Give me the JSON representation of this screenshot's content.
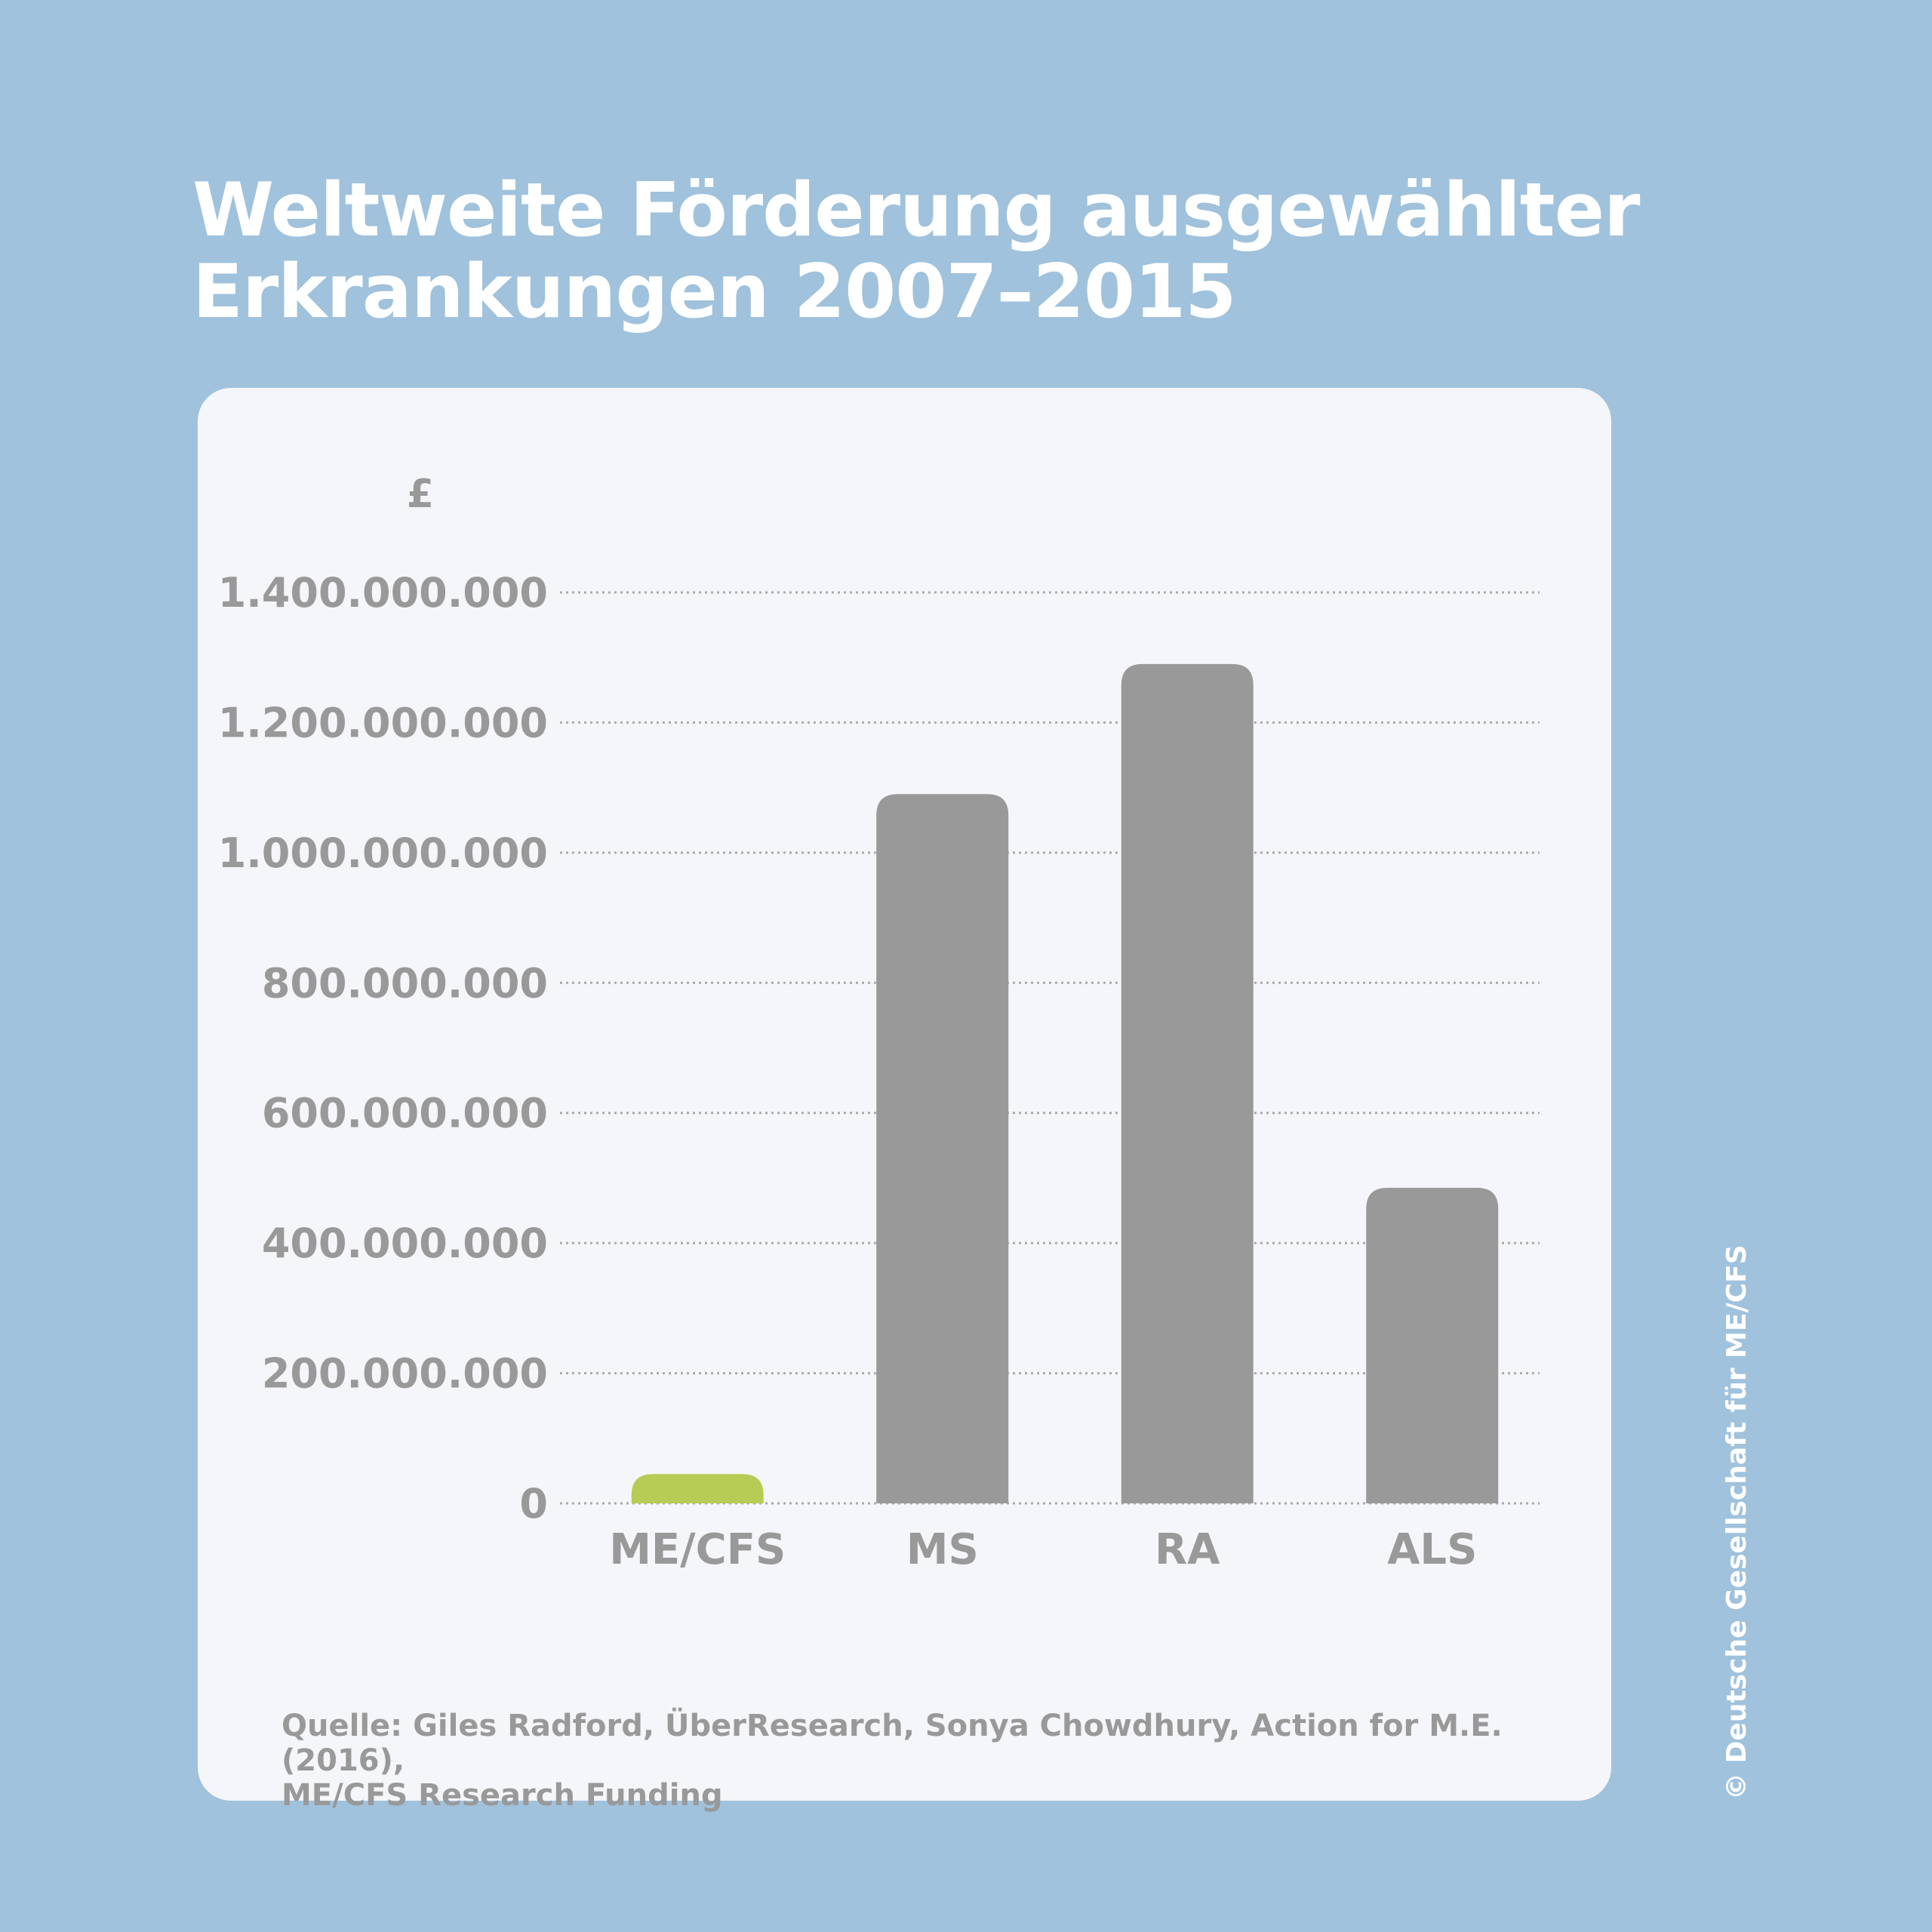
{
  "title_lines": [
    "Weltweite Förderung ausgewählter",
    "Erkrankungen 2007–2015"
  ],
  "source_lines": [
    "Quelle: Giles Radford, ÜberResearch, Sonya Chowdhury, Action for M.E. (2016),",
    "ME/CFS Research Funding"
  ],
  "copyright": "© Deutsche Gesellschaft für ME/CFS",
  "colors": {
    "background": "#a0c2dc",
    "card": "#f5f6f9",
    "bar_default": "#999999",
    "bar_highlight": "#b6cc55",
    "text_gray": "#999999"
  },
  "chart_data": {
    "type": "bar",
    "ylabel": "£",
    "ylim": [
      0,
      1400000000
    ],
    "yticks": [
      0,
      200000000,
      400000000,
      600000000,
      800000000,
      1000000000,
      1200000000,
      1400000000
    ],
    "ytick_labels": [
      "0",
      "200.000.000",
      "400.000.000",
      "600.000.000",
      "800.000.000",
      "1.000.000.000",
      "1.200.000.000",
      "1.400.000.000"
    ],
    "categories": [
      "ME/CFS",
      "MS",
      "RA",
      "ALS"
    ],
    "values": [
      45000000,
      1090000000,
      1290000000,
      485000000
    ],
    "highlight": [
      "ME/CFS"
    ],
    "grid": "horizontal-dotted"
  }
}
